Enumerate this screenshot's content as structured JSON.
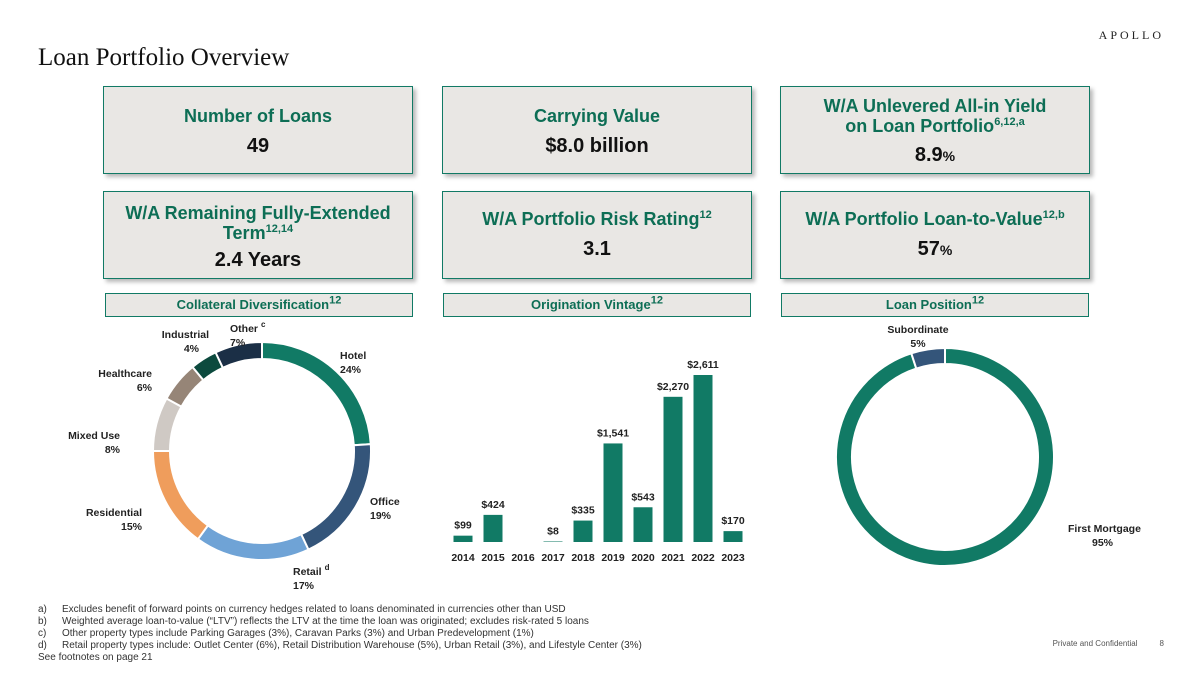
{
  "header": {
    "brand": "APOLLO",
    "title": "Loan Portfolio Overview"
  },
  "kpis": [
    {
      "label": "Number of Loans",
      "value": "49"
    },
    {
      "label": "Carrying Value",
      "value": "$8.0 billion"
    },
    {
      "label_line1": "W/A Unlevered All-in Yield",
      "label_line2": "on Loan Portfolio",
      "sup": "6,12,a",
      "value": "8.9",
      "unit": "%"
    },
    {
      "label_line1": "W/A Remaining Fully-Extended",
      "label_line2": "Term",
      "sup": "12,14",
      "value": "2.4 Years"
    },
    {
      "label": "W/A Portfolio Risk Rating",
      "sup": "12",
      "value": "3.1"
    },
    {
      "label": "W/A Portfolio Loan-to-Value",
      "sup": "12,b",
      "value": "57",
      "unit": "%"
    }
  ],
  "sections": [
    {
      "label": "Collateral Diversification",
      "sup": "12"
    },
    {
      "label": "Origination Vintage",
      "sup": "12"
    },
    {
      "label": "Loan Position",
      "sup": "12"
    }
  ],
  "chart_data": [
    {
      "type": "pie",
      "title": "Collateral Diversification",
      "donut": true,
      "slices": [
        {
          "label": "Hotel",
          "pct_label": "24%",
          "value": 24,
          "color": "#117a65"
        },
        {
          "label": "Office",
          "pct_label": "19%",
          "value": 19,
          "color": "#34557a"
        },
        {
          "label": "Retail",
          "note": "d",
          "pct_label": "17%",
          "value": 17,
          "color": "#6fa3d6"
        },
        {
          "label": "Residential",
          "pct_label": "15%",
          "value": 15,
          "color": "#ef9d5c"
        },
        {
          "label": "Mixed Use",
          "pct_label": "8%",
          "value": 8,
          "color": "#cfc9c4"
        },
        {
          "label": "Healthcare",
          "pct_label": "6%",
          "value": 6,
          "color": "#968577"
        },
        {
          "label": "Industrial",
          "pct_label": "4%",
          "value": 4,
          "color": "#0c4a3e"
        },
        {
          "label": "Other",
          "note": "c",
          "pct_label": "7%",
          "value": 7,
          "color": "#1b2f46"
        }
      ]
    },
    {
      "type": "bar",
      "title": "Origination Vintage",
      "color": "#117a65",
      "categories": [
        "2014",
        "2015",
        "2016",
        "2017",
        "2018",
        "2019",
        "2020",
        "2021",
        "2022",
        "2023"
      ],
      "values": [
        99,
        424,
        0,
        8,
        335,
        1541,
        543,
        2270,
        2611,
        170
      ],
      "labels": [
        "$99",
        "$424",
        "",
        "$8",
        "$335",
        "$1,541",
        "$543",
        "$2,270",
        "$2,611",
        "$170"
      ],
      "ylim": [
        0,
        2700
      ]
    },
    {
      "type": "pie",
      "title": "Loan Position",
      "donut": true,
      "slices": [
        {
          "label": "First Mortgage",
          "pct_label": "95%",
          "value": 95,
          "color": "#117a65"
        },
        {
          "label": "Subordinate",
          "pct_label": "5%",
          "value": 5,
          "color": "#34557a"
        }
      ]
    }
  ],
  "footnotes": [
    {
      "idx": "a)",
      "text": "Excludes benefit of forward points on currency hedges related to loans denominated in currencies other than USD"
    },
    {
      "idx": "b)",
      "text": "Weighted average loan-to-value (“LTV”) reflects the LTV at the time the loan was originated; excludes risk-rated 5 loans"
    },
    {
      "idx": "c)",
      "text": "Other property types include Parking Garages (3%), Caravan Parks (3%) and Urban Predevelopment (1%)"
    },
    {
      "idx": "d)",
      "text": "Retail property types include: Outlet Center (6%), Retail Distribution Warehouse (5%), Urban Retail (3%), and Lifestyle Center (3%)"
    }
  ],
  "footnote_tail": "See footnotes on page 21",
  "footer": {
    "confidential": "Private and Confidential",
    "page": "8"
  }
}
